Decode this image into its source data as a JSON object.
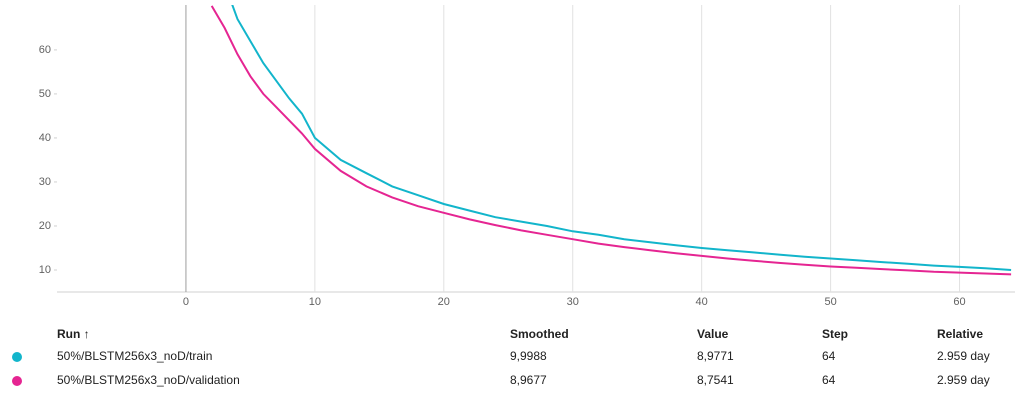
{
  "chart_data": {
    "type": "line",
    "x": [
      2,
      3,
      4,
      5,
      6,
      7,
      8,
      9,
      10,
      12,
      14,
      16,
      18,
      20,
      22,
      24,
      26,
      28,
      30,
      32,
      34,
      36,
      38,
      40,
      42,
      44,
      46,
      48,
      50,
      52,
      54,
      56,
      58,
      60,
      62,
      64
    ],
    "series": [
      {
        "name": "50%/BLSTM256x3_noD/train",
        "color": "#12b5cb",
        "values": [
          82,
          75,
          67,
          62,
          57,
          53,
          49,
          45.5,
          40,
          35,
          32,
          29,
          27,
          25,
          23.5,
          22,
          21,
          20,
          18.8,
          18,
          17,
          16.3,
          15.6,
          15,
          14.5,
          14,
          13.5,
          13,
          12.6,
          12.2,
          11.8,
          11.4,
          11,
          10.7,
          10.4,
          10
        ]
      },
      {
        "name": "50%/BLSTM256x3_noD/validation",
        "color": "#e52592",
        "values": [
          70,
          65,
          59,
          54,
          50,
          47,
          44,
          41,
          37.5,
          32.5,
          29,
          26.5,
          24.5,
          23,
          21.5,
          20.2,
          19,
          18,
          17,
          16,
          15.2,
          14.5,
          13.8,
          13.2,
          12.6,
          12.1,
          11.6,
          11.2,
          10.8,
          10.5,
          10.2,
          9.9,
          9.6,
          9.4,
          9.2,
          9
        ]
      }
    ],
    "xlim": [
      -10,
      64.3
    ],
    "xticks": [
      0,
      10,
      20,
      30,
      40,
      50,
      60
    ],
    "ylim": [
      5,
      70.2
    ],
    "yticks": [
      10,
      20,
      30,
      40,
      50,
      60
    ],
    "grid": true
  },
  "table": {
    "columns": [
      "Run ↑",
      "Smoothed",
      "Value",
      "Step",
      "Relative"
    ],
    "rows": [
      [
        "50%/BLSTM256x3_noD/train",
        "9,9988",
        "8,9771",
        "64",
        "2.959 day"
      ],
      [
        "50%/BLSTM256x3_noD/validation",
        "8,9677",
        "8,7541",
        "64",
        "2.959 day"
      ]
    ]
  }
}
